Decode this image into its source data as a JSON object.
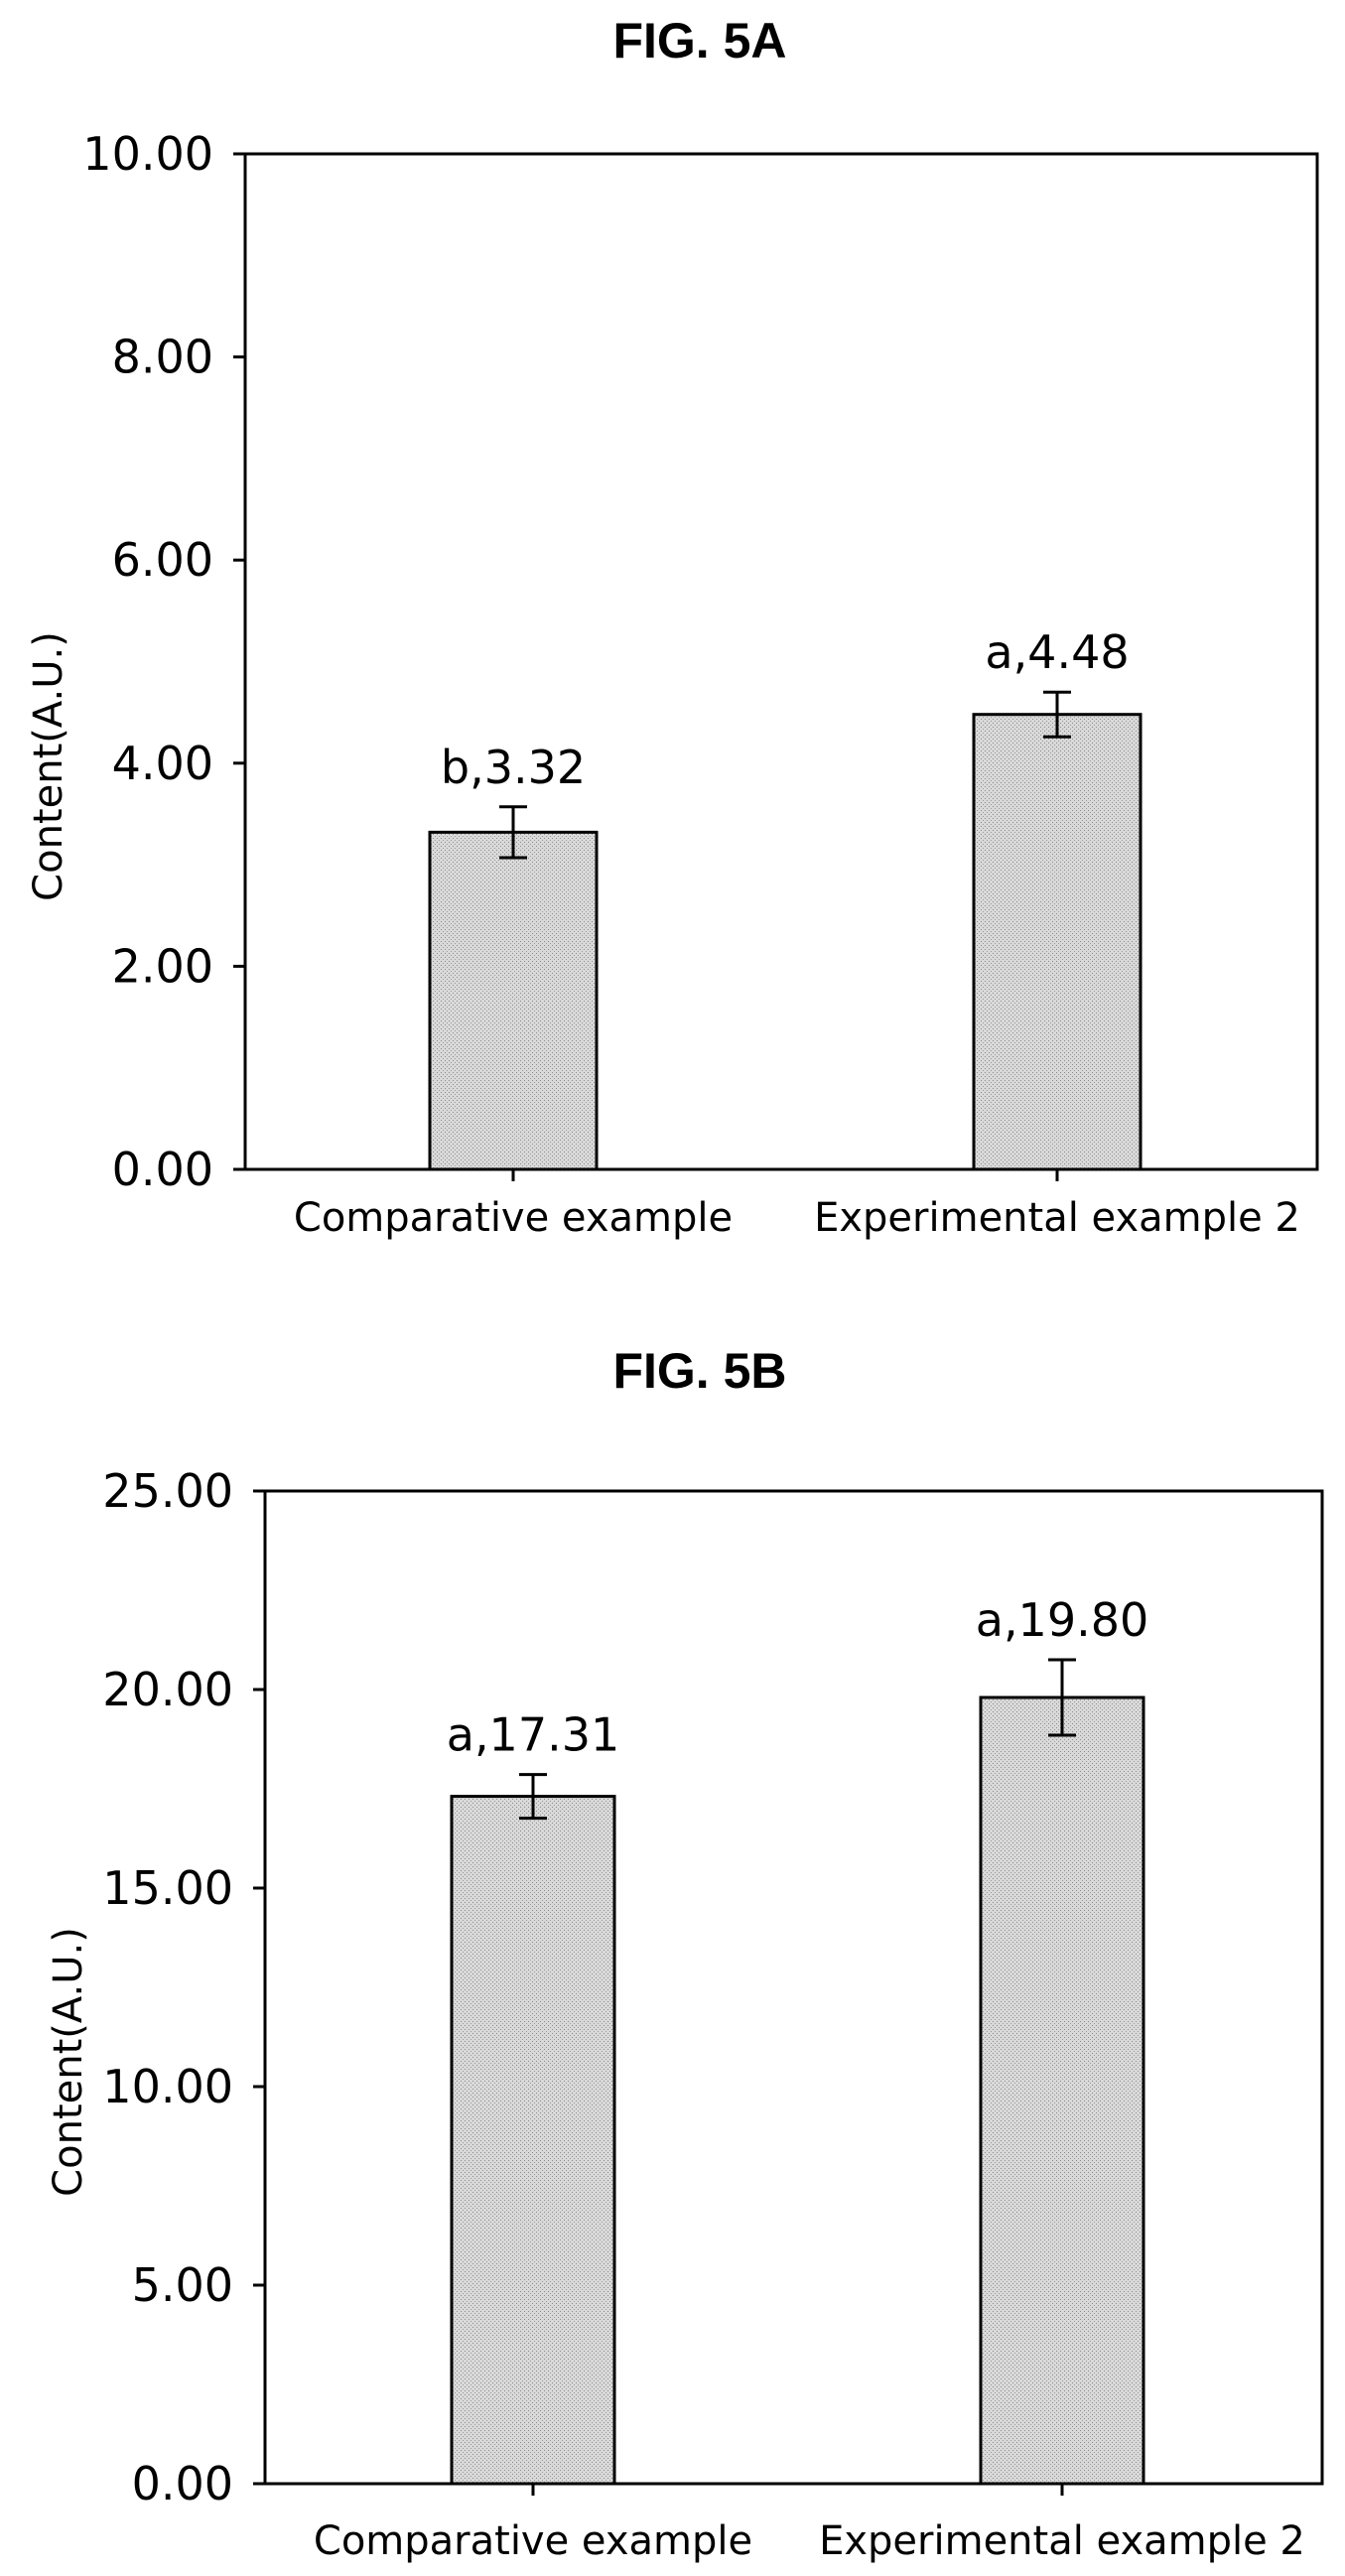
{
  "chart_data": [
    {
      "type": "bar",
      "title": "FIG. 5A",
      "xlabel": "",
      "ylabel": "Content(A.U.)",
      "ylim": [
        0,
        10
      ],
      "yticks": [
        "0.00",
        "2.00",
        "4.00",
        "6.00",
        "8.00",
        "10.00"
      ],
      "categories": [
        "Comparative example",
        "Experimental example 2"
      ],
      "values": [
        3.32,
        4.48
      ],
      "errors": [
        0.25,
        0.22
      ],
      "data_labels": [
        "b,3.32",
        "a,4.48"
      ],
      "grid": false,
      "bar_color": "#d4d4d4"
    },
    {
      "type": "bar",
      "title": "FIG. 5B",
      "xlabel": "",
      "ylabel": "Content(A.U.)",
      "ylim": [
        0,
        25
      ],
      "yticks": [
        "0.00",
        "5.00",
        "10.00",
        "15.00",
        "20.00",
        "25.00"
      ],
      "categories": [
        "Comparative example",
        "Experimental example 2"
      ],
      "values": [
        17.31,
        19.8
      ],
      "errors": [
        0.55,
        0.95
      ],
      "data_labels": [
        "a,17.31",
        "a,19.80"
      ],
      "grid": false,
      "bar_color": "#d4d4d4"
    }
  ]
}
